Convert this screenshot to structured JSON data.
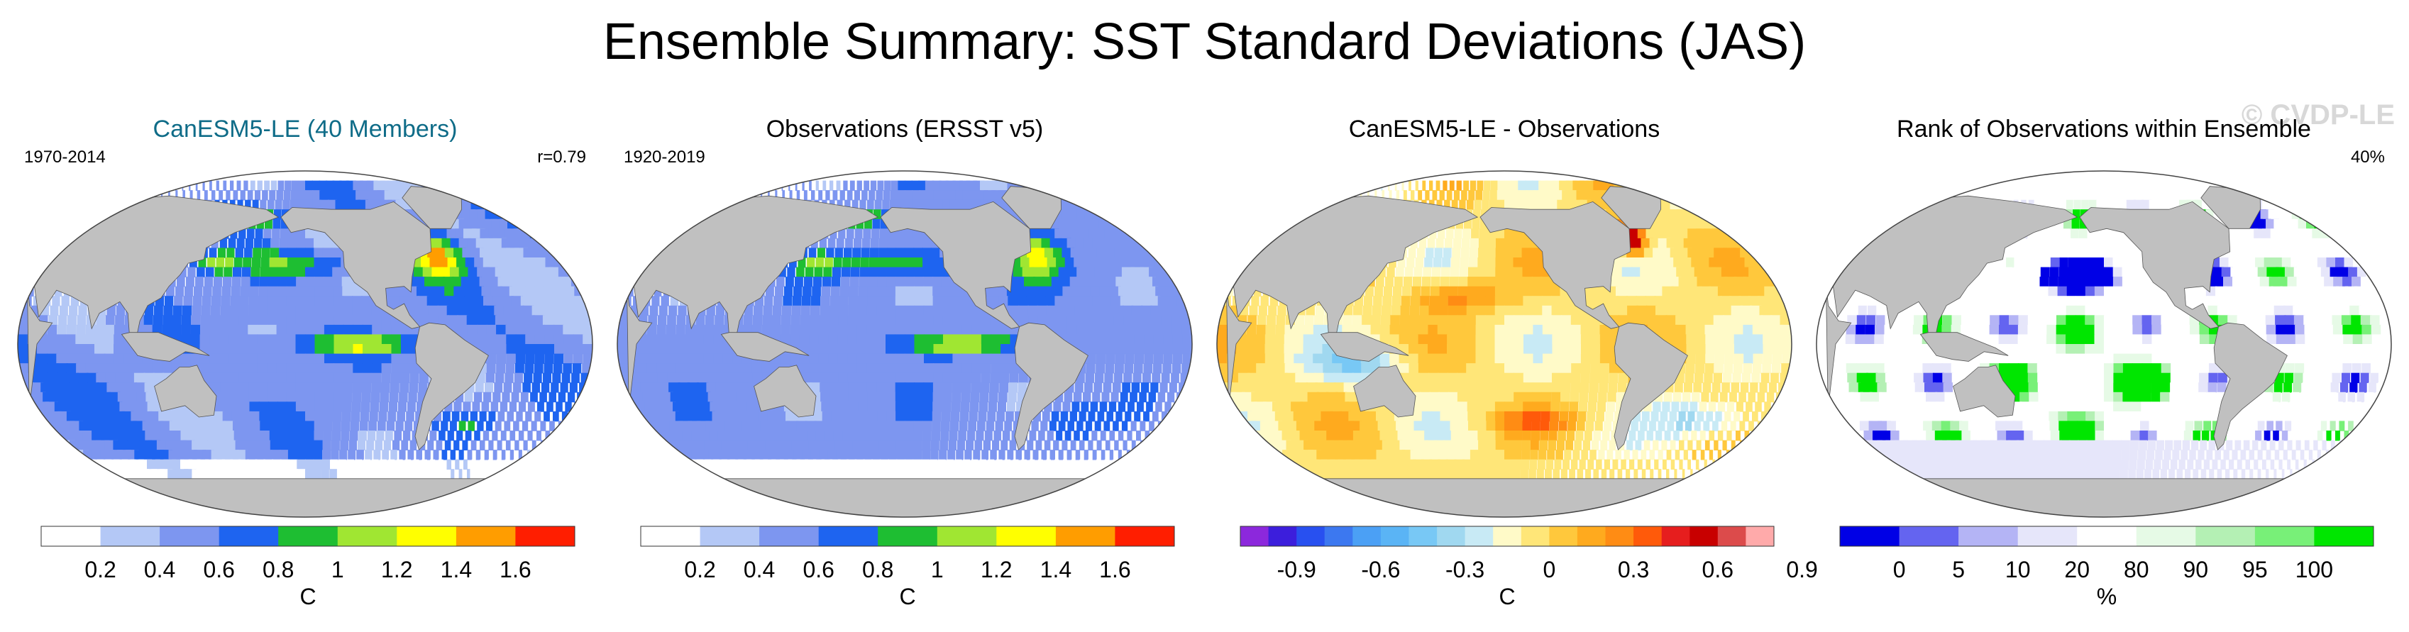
{
  "title": "Ensemble Summary: SST Standard Deviations (JAS)",
  "watermark": "© CVDP-LE",
  "colors": {
    "land": "#c0c0c0",
    "title_blue": "#0f6c88"
  },
  "chart_data": [
    {
      "type": "heatmap",
      "title": "CanESM5-LE (40 Members)",
      "period": "1970-2014",
      "stat": "r=0.79",
      "pattern": "std",
      "colorbar": {
        "colors": [
          "#ffffff",
          "#b4c8f6",
          "#7d96f0",
          "#1e64f0",
          "#1ebe32",
          "#a0e632",
          "#ffff00",
          "#ff9d00",
          "#ff1e00"
        ],
        "tick_labels": [
          "0.2",
          "0.4",
          "0.6",
          "0.8",
          "1",
          "1.2",
          "1.4",
          "1.6"
        ],
        "units": "C"
      }
    },
    {
      "type": "heatmap",
      "title": "Observations (ERSST v5)",
      "period": "1920-2019",
      "stat": "",
      "pattern": "std",
      "colorbar": {
        "colors": [
          "#ffffff",
          "#b4c8f6",
          "#7d96f0",
          "#1e64f0",
          "#1ebe32",
          "#a0e632",
          "#ffff00",
          "#ff9d00",
          "#ff1e00"
        ],
        "tick_labels": [
          "0.2",
          "0.4",
          "0.6",
          "0.8",
          "1",
          "1.2",
          "1.4",
          "1.6"
        ],
        "units": "C"
      }
    },
    {
      "type": "heatmap",
      "title": "CanESM5-LE - Observations",
      "period": "",
      "stat": "",
      "pattern": "diff",
      "colorbar": {
        "colors": [
          "#8c28dc",
          "#3c1edc",
          "#2850f0",
          "#3c78f0",
          "#4ba0f5",
          "#5ab4f5",
          "#78c8f5",
          "#a0d8f0",
          "#c8eaf5",
          "#fffac8",
          "#ffe678",
          "#ffc83c",
          "#ffaa1e",
          "#ff8c14",
          "#ff5a0a",
          "#e61e1e",
          "#c80000",
          "#dc4b4b",
          "#ffaaaa"
        ],
        "tick_labels": [
          "-0.9",
          "-0.6",
          "-0.3",
          "0",
          "0.3",
          "0.6",
          "0.9"
        ],
        "units": "C"
      }
    },
    {
      "type": "heatmap",
      "title": "Rank of Observations within Ensemble",
      "period": "",
      "stat": "40%",
      "pattern": "rank",
      "colorbar": {
        "colors": [
          "#0000e6",
          "#6464f0",
          "#b4b4f5",
          "#e6e6fa",
          "#ffffff",
          "#e6fae6",
          "#b4f0b4",
          "#78f078",
          "#00e600"
        ],
        "tick_labels": [
          "0",
          "5",
          "10",
          "20",
          "80",
          "90",
          "95",
          "100"
        ],
        "units": "%"
      }
    }
  ]
}
